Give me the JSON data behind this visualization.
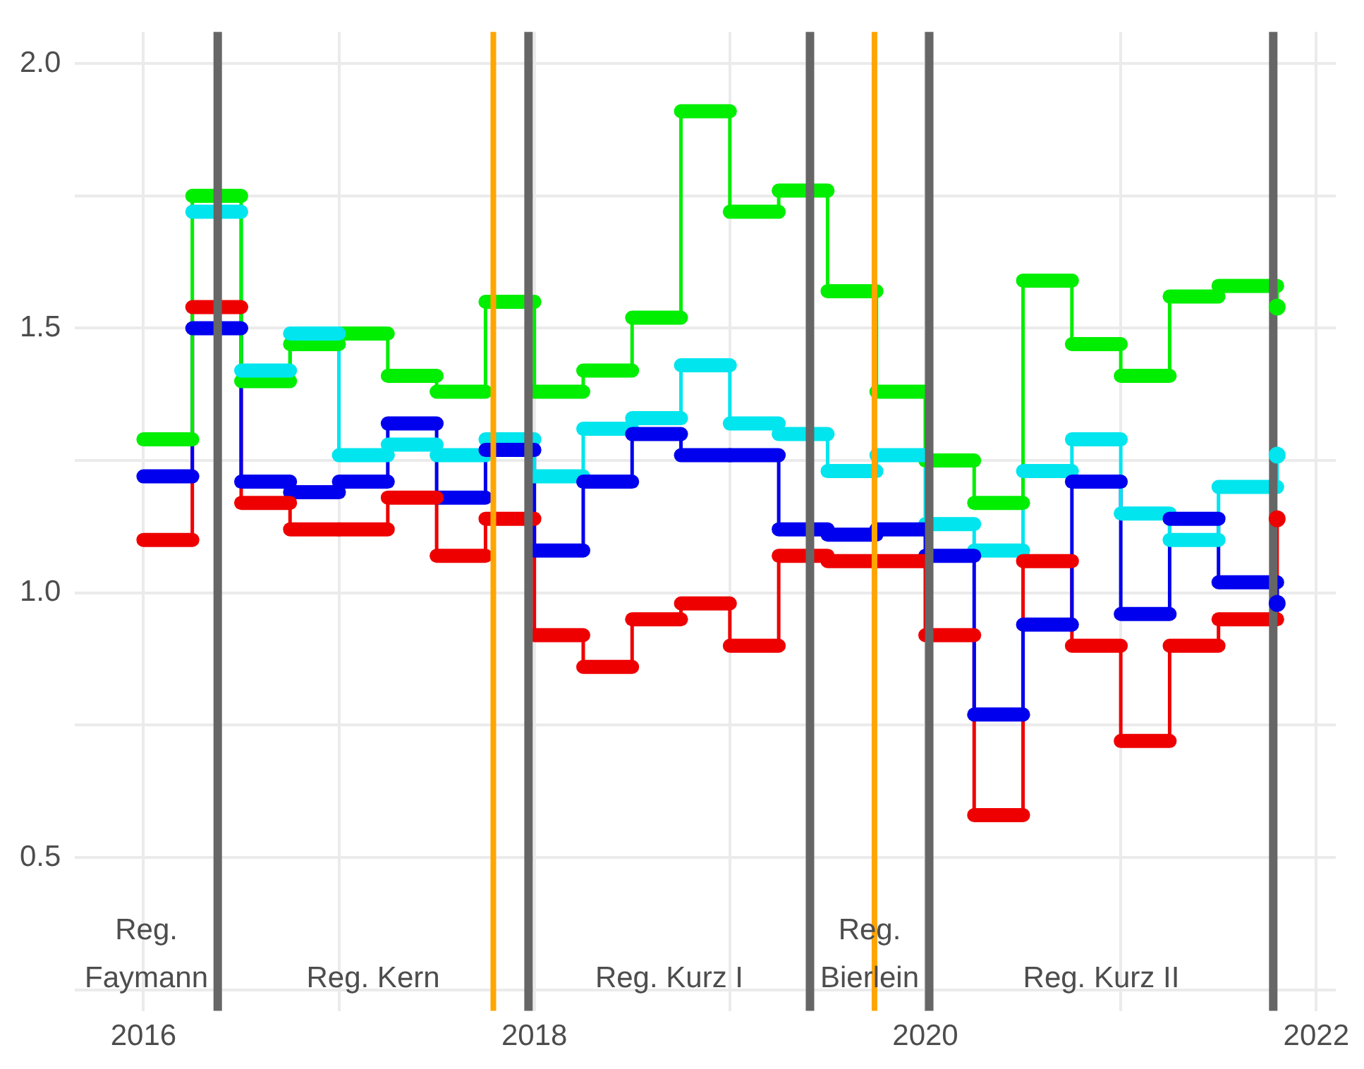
{
  "chart_data": {
    "type": "step",
    "x": [
      2016,
      2016.25,
      2016.5,
      2016.75,
      2017,
      2017.25,
      2017.5,
      2017.75,
      2018,
      2018.25,
      2018.5,
      2018.75,
      2019,
      2019.25,
      2019.5,
      2019.75,
      2020,
      2020.25,
      2020.5,
      2020.75,
      2021,
      2021.25,
      2021.5,
      2021.8
    ],
    "series": [
      {
        "color": "#00ee00",
        "values": [
          1.29,
          1.75,
          1.4,
          1.47,
          1.49,
          1.41,
          1.38,
          1.55,
          1.38,
          1.42,
          1.52,
          1.91,
          1.72,
          1.76,
          1.57,
          1.38,
          1.25,
          1.17,
          1.59,
          1.47,
          1.41,
          1.56,
          1.58,
          1.54
        ]
      },
      {
        "color": "#00e5ee",
        "values": [
          null,
          1.72,
          1.42,
          1.49,
          1.26,
          1.28,
          1.26,
          1.29,
          1.22,
          1.31,
          1.33,
          1.43,
          1.32,
          1.3,
          1.23,
          1.26,
          1.13,
          1.08,
          1.23,
          1.29,
          1.15,
          1.1,
          1.2,
          1.26
        ]
      },
      {
        "color": "#0000ee",
        "values": [
          1.22,
          1.5,
          1.21,
          1.19,
          1.21,
          1.32,
          1.18,
          1.27,
          1.08,
          1.21,
          1.3,
          1.26,
          1.26,
          1.12,
          1.11,
          1.12,
          1.07,
          0.77,
          0.94,
          1.21,
          0.96,
          1.14,
          1.02,
          0.98
        ]
      },
      {
        "color": "#ee0000",
        "values": [
          1.1,
          1.54,
          1.17,
          1.12,
          1.12,
          1.18,
          1.07,
          1.14,
          0.92,
          0.86,
          0.95,
          0.98,
          0.9,
          1.07,
          1.06,
          1.06,
          0.92,
          0.58,
          1.06,
          0.9,
          0.72,
          0.9,
          0.95,
          1.14
        ]
      }
    ],
    "xlim": [
      2015.65,
      2022.1
    ],
    "xticks": [
      2016,
      {
        "value": 2017,
        "label": null
      },
      2018,
      {
        "value": 2019,
        "label": null
      },
      2020,
      {
        "value": 2021,
        "label": null
      },
      2022
    ],
    "ylim": [
      0.21,
      2.06
    ],
    "yticks": [
      {
        "value": 0.25,
        "label": null
      },
      0.5,
      {
        "value": 0.75,
        "label": null
      },
      {
        "value": 1,
        "label": "1.0"
      },
      {
        "value": 1.25,
        "label": null
      },
      1.5,
      {
        "value": 1.75,
        "label": null
      },
      {
        "value": 2,
        "label": "2.0"
      }
    ],
    "grid": true,
    "legend": false,
    "ref_lines": [
      {
        "axis": "x",
        "value": 2016.38,
        "color": "#666666"
      },
      {
        "axis": "x",
        "value": 2017.79,
        "color": "#ffa500"
      },
      {
        "axis": "x",
        "value": 2017.97,
        "color": "#666666"
      },
      {
        "axis": "x",
        "value": 2019.41,
        "color": "#666666"
      },
      {
        "axis": "x",
        "value": 2019.74,
        "color": "#ffa500"
      },
      {
        "axis": "x",
        "value": 2020.02,
        "color": "#666666"
      },
      {
        "axis": "x",
        "value": 2021.78,
        "color": "#666666"
      }
    ],
    "annotations": [
      "Reg. Faymann",
      "Reg. Kern",
      "Reg. Kurz I",
      "Reg. Bierlein",
      "Reg. Kurz II"
    ]
  }
}
